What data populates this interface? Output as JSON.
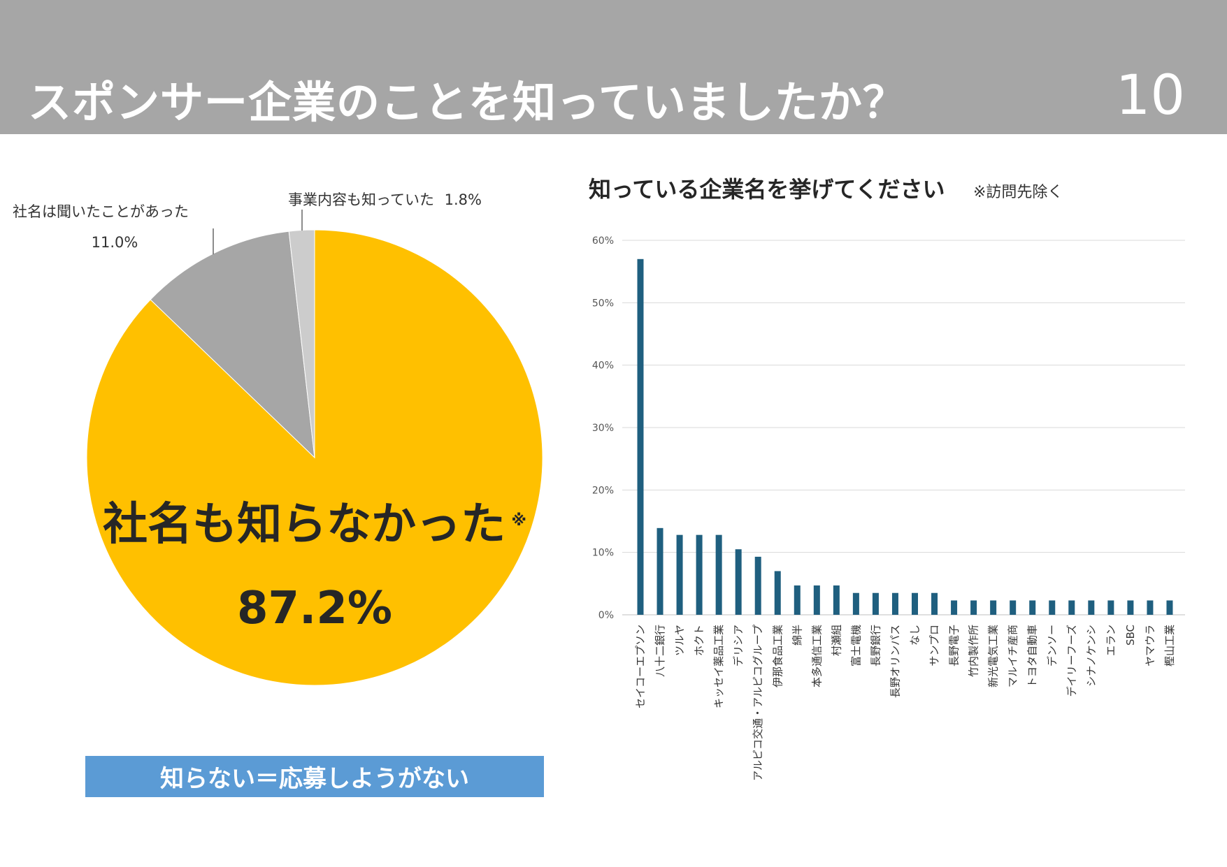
{
  "header": {
    "title": "スポンサー企業のことを知っていましたか？",
    "page_number": "10"
  },
  "banner": {
    "text": "知らない＝応募しようがない"
  },
  "colors": {
    "header_bg": "#a6a6a6",
    "pie_main": "#ffc000",
    "pie_mid": "#a6a6a6",
    "pie_small": "#cccccc",
    "bar": "#1f5f7f",
    "banner_bg": "#5b9bd5"
  },
  "chart_data": [
    {
      "type": "pie",
      "slices": [
        {
          "label": "社名も知らなかった",
          "marker": "※",
          "value": 87.2,
          "display": "87.2%"
        },
        {
          "label": "社名は聞いたことがあった",
          "value": 11.0,
          "display": "11.0%"
        },
        {
          "label": "事業内容も知っていた",
          "value": 1.8,
          "display": "1.8%"
        }
      ]
    },
    {
      "type": "bar",
      "title": "知っている企業名を挙げてください",
      "note": "※訪問先除く",
      "ylim": [
        0,
        60
      ],
      "yticks": [
        0,
        10,
        20,
        30,
        40,
        50,
        60
      ],
      "ytick_labels": [
        "0%",
        "10%",
        "20%",
        "30%",
        "40%",
        "50%",
        "60%"
      ],
      "grid": true,
      "categories": [
        "セイコーエプソン",
        "八十二銀行",
        "ツルヤ",
        "ホクト",
        "キッセイ薬品工業",
        "デリシア",
        "アルピコ交通・アルピコグループ",
        "伊那食品工業",
        "綿半",
        "本多通信工業",
        "村瀬組",
        "富士電機",
        "長野銀行",
        "長野オリンパス",
        "なし",
        "サンプロ",
        "長野電子",
        "竹内製作所",
        "新光電気工業",
        "マルイチ産商",
        "トヨタ自動車",
        "デンソー",
        "デイリーフーズ",
        "シナノケンシ",
        "エラン",
        "SBC",
        "ヤマウラ",
        "樫山工業"
      ],
      "values": [
        57.0,
        13.9,
        12.8,
        12.8,
        12.8,
        10.5,
        9.3,
        7.0,
        4.7,
        4.7,
        4.7,
        3.5,
        3.5,
        3.5,
        3.5,
        3.5,
        2.3,
        2.3,
        2.3,
        2.3,
        2.3,
        2.3,
        2.3,
        2.3,
        2.3,
        2.3,
        2.3,
        2.3
      ]
    }
  ]
}
